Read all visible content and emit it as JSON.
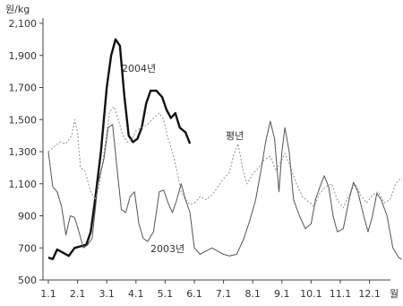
{
  "chart_data": {
    "type": "line",
    "ylabel": "원/kg",
    "xlabel": "월",
    "ylim": [
      500,
      2100
    ],
    "yticks": [
      500,
      700,
      900,
      1100,
      1300,
      1500,
      1700,
      1900,
      2100
    ],
    "ytick_labels": [
      "500",
      "700",
      "900",
      "1,100",
      "1,300",
      "1,500",
      "1,700",
      "1,900",
      "2,100"
    ],
    "xticks": [
      1,
      2,
      3,
      4,
      5,
      6,
      7,
      8,
      9,
      10,
      11,
      12
    ],
    "xtick_labels": [
      "1.1",
      "2.1",
      "3.1",
      "4.1",
      "5.1",
      "6.1",
      "7.1",
      "8.1",
      "9.1",
      "10.1",
      "11.1",
      "12.1"
    ],
    "xlim": [
      1,
      13.1
    ],
    "grid": false,
    "series": [
      {
        "name": "2004년",
        "color": "#111111",
        "style": "solid-bold",
        "points": [
          [
            1.0,
            640
          ],
          [
            1.15,
            630
          ],
          [
            1.3,
            690
          ],
          [
            1.5,
            670
          ],
          [
            1.7,
            650
          ],
          [
            1.9,
            700
          ],
          [
            2.1,
            710
          ],
          [
            2.3,
            720
          ],
          [
            2.45,
            800
          ],
          [
            2.6,
            1000
          ],
          [
            2.8,
            1300
          ],
          [
            3.0,
            1700
          ],
          [
            3.15,
            1900
          ],
          [
            3.3,
            2000
          ],
          [
            3.45,
            1960
          ],
          [
            3.6,
            1650
          ],
          [
            3.75,
            1400
          ],
          [
            3.9,
            1360
          ],
          [
            4.05,
            1380
          ],
          [
            4.2,
            1450
          ],
          [
            4.35,
            1600
          ],
          [
            4.5,
            1680
          ],
          [
            4.7,
            1680
          ],
          [
            4.9,
            1640
          ],
          [
            5.05,
            1560
          ],
          [
            5.2,
            1510
          ],
          [
            5.35,
            1540
          ],
          [
            5.5,
            1450
          ],
          [
            5.7,
            1420
          ],
          [
            5.85,
            1350
          ]
        ]
      },
      {
        "name": "평년",
        "color": "#999999",
        "style": "dotted",
        "points": [
          [
            1.0,
            1300
          ],
          [
            1.2,
            1330
          ],
          [
            1.4,
            1360
          ],
          [
            1.6,
            1350
          ],
          [
            1.8,
            1400
          ],
          [
            1.9,
            1500
          ],
          [
            2.0,
            1420
          ],
          [
            2.1,
            1200
          ],
          [
            2.25,
            1180
          ],
          [
            2.45,
            1050
          ],
          [
            2.6,
            1000
          ],
          [
            2.75,
            1100
          ],
          [
            2.95,
            1350
          ],
          [
            3.1,
            1550
          ],
          [
            3.25,
            1580
          ],
          [
            3.4,
            1500
          ],
          [
            3.55,
            1400
          ],
          [
            3.7,
            1360
          ],
          [
            3.85,
            1380
          ],
          [
            4.0,
            1430
          ],
          [
            4.2,
            1450
          ],
          [
            4.4,
            1470
          ],
          [
            4.6,
            1510
          ],
          [
            4.8,
            1540
          ],
          [
            4.95,
            1500
          ],
          [
            5.1,
            1380
          ],
          [
            5.25,
            1300
          ],
          [
            5.4,
            1180
          ],
          [
            5.55,
            1050
          ],
          [
            5.7,
            1000
          ],
          [
            5.85,
            970
          ],
          [
            6.0,
            980
          ],
          [
            6.2,
            1020
          ],
          [
            6.4,
            1000
          ],
          [
            6.6,
            1030
          ],
          [
            6.8,
            1080
          ],
          [
            7.0,
            1130
          ],
          [
            7.2,
            1170
          ],
          [
            7.35,
            1280
          ],
          [
            7.5,
            1350
          ],
          [
            7.65,
            1200
          ],
          [
            7.8,
            1100
          ],
          [
            8.0,
            1160
          ],
          [
            8.2,
            1200
          ],
          [
            8.4,
            1250
          ],
          [
            8.6,
            1270
          ],
          [
            8.8,
            1180
          ],
          [
            9.0,
            1250
          ],
          [
            9.1,
            1290
          ],
          [
            9.3,
            1200
          ],
          [
            9.5,
            1100
          ],
          [
            9.7,
            1020
          ],
          [
            9.9,
            990
          ],
          [
            10.1,
            960
          ],
          [
            10.3,
            1040
          ],
          [
            10.5,
            1080
          ],
          [
            10.7,
            1100
          ],
          [
            10.9,
            1000
          ],
          [
            11.1,
            950
          ],
          [
            11.3,
            1030
          ],
          [
            11.5,
            1100
          ],
          [
            11.7,
            1030
          ],
          [
            11.9,
            980
          ],
          [
            12.1,
            1030
          ],
          [
            12.3,
            1050
          ],
          [
            12.5,
            980
          ],
          [
            12.7,
            1000
          ],
          [
            12.9,
            1100
          ],
          [
            13.1,
            1140
          ]
        ]
      },
      {
        "name": "2003년",
        "color": "#555555",
        "style": "solid",
        "points": [
          [
            1.0,
            1300
          ],
          [
            1.15,
            1080
          ],
          [
            1.3,
            1050
          ],
          [
            1.45,
            960
          ],
          [
            1.6,
            780
          ],
          [
            1.75,
            900
          ],
          [
            1.9,
            890
          ],
          [
            2.05,
            800
          ],
          [
            2.2,
            700
          ],
          [
            2.35,
            720
          ],
          [
            2.5,
            760
          ],
          [
            2.7,
            1100
          ],
          [
            2.9,
            1250
          ],
          [
            3.05,
            1450
          ],
          [
            3.2,
            1470
          ],
          [
            3.35,
            1200
          ],
          [
            3.5,
            940
          ],
          [
            3.65,
            920
          ],
          [
            3.8,
            1020
          ],
          [
            3.95,
            1050
          ],
          [
            4.1,
            850
          ],
          [
            4.25,
            760
          ],
          [
            4.4,
            740
          ],
          [
            4.6,
            800
          ],
          [
            4.8,
            1050
          ],
          [
            4.95,
            1060
          ],
          [
            5.1,
            980
          ],
          [
            5.25,
            920
          ],
          [
            5.4,
            1000
          ],
          [
            5.55,
            1100
          ],
          [
            5.7,
            1000
          ],
          [
            5.85,
            920
          ],
          [
            6.0,
            700
          ],
          [
            6.2,
            660
          ],
          [
            6.4,
            680
          ],
          [
            6.6,
            700
          ],
          [
            6.8,
            680
          ],
          [
            7.0,
            660
          ],
          [
            7.2,
            650
          ],
          [
            7.45,
            660
          ],
          [
            7.7,
            760
          ],
          [
            7.9,
            870
          ],
          [
            8.1,
            1000
          ],
          [
            8.3,
            1200
          ],
          [
            8.45,
            1370
          ],
          [
            8.6,
            1490
          ],
          [
            8.75,
            1380
          ],
          [
            8.9,
            1050
          ],
          [
            9.0,
            1300
          ],
          [
            9.1,
            1450
          ],
          [
            9.25,
            1300
          ],
          [
            9.4,
            1000
          ],
          [
            9.6,
            900
          ],
          [
            9.8,
            820
          ],
          [
            10.0,
            850
          ],
          [
            10.15,
            1000
          ],
          [
            10.3,
            1080
          ],
          [
            10.45,
            1150
          ],
          [
            10.6,
            1080
          ],
          [
            10.75,
            900
          ],
          [
            10.9,
            800
          ],
          [
            11.1,
            820
          ],
          [
            11.3,
            1000
          ],
          [
            11.45,
            1110
          ],
          [
            11.6,
            1050
          ],
          [
            11.8,
            900
          ],
          [
            11.95,
            800
          ],
          [
            12.1,
            900
          ],
          [
            12.25,
            1040
          ],
          [
            12.4,
            1000
          ],
          [
            12.6,
            900
          ],
          [
            12.8,
            700
          ],
          [
            13.0,
            640
          ],
          [
            13.1,
            630
          ]
        ]
      }
    ],
    "annotations": [
      {
        "text": "2004년",
        "series": "2004년"
      },
      {
        "text": "평년",
        "series": "평년"
      },
      {
        "text": "2003년",
        "series": "2003년"
      }
    ]
  }
}
